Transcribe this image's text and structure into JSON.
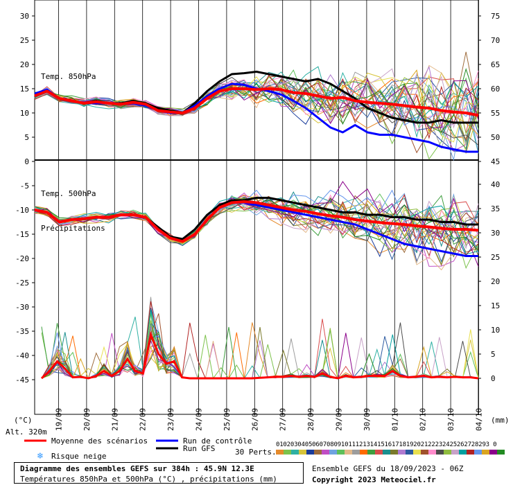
{
  "chart_data": {
    "type": "line",
    "title": "Diagramme des ensembles GEFS sur 384h : 45.9N 12.3E",
    "subtitle": "Températures 850hPa et 500hPa (°C) , précipitations (mm)",
    "x_dates": [
      "19/09",
      "20/09",
      "21/09",
      "22/09",
      "23/09",
      "24/09",
      "25/09",
      "26/09",
      "27/09",
      "28/09",
      "29/09",
      "30/09",
      "01/10",
      "02/10",
      "03/10",
      "04/10"
    ],
    "left_axis": {
      "unit": "(°C)",
      "ticks": [
        30,
        25,
        20,
        15,
        10,
        5,
        0,
        -5,
        -10,
        -15,
        -20,
        -25,
        -30,
        -35,
        -40,
        -45
      ]
    },
    "right_axis": {
      "unit": "(mm)",
      "ticks_top": [
        75,
        70,
        65,
        60,
        55,
        50,
        45
      ],
      "ticks_bottom": [
        40,
        35,
        30,
        25,
        20,
        15,
        10,
        5,
        0
      ]
    },
    "panel_labels": {
      "t850": "Temp. 850hPa",
      "t500": "Temp. 500hPa",
      "precip": "Précipitations"
    },
    "altitude": "Alt. 320m",
    "t850": {
      "mean": [
        13.5,
        14.5,
        13,
        12.5,
        12,
        12.3,
        12,
        11.8,
        12.2,
        11.8,
        10.5,
        10.2,
        10,
        11,
        13,
        14.5,
        15,
        15,
        14.8,
        15,
        14.8,
        14.2,
        14,
        13.5,
        13,
        13.2,
        12.5,
        12.2,
        12,
        11.8,
        11.5,
        11.2,
        11,
        10.5,
        10.2,
        10,
        9.5
      ],
      "control": [
        14,
        14.8,
        13,
        12.5,
        12,
        12,
        12,
        11.8,
        12,
        11.5,
        10.5,
        10,
        10,
        11.5,
        13.5,
        15,
        16,
        15.8,
        15,
        14.5,
        13.8,
        12.5,
        11,
        9,
        7,
        6,
        7.5,
        6,
        5.5,
        5.5,
        5,
        4.5,
        4,
        3,
        2.5,
        2,
        2
      ],
      "gfs": [
        13.5,
        14.5,
        13,
        12.5,
        12,
        12.5,
        12,
        12,
        12.5,
        12,
        11,
        10.5,
        10,
        12,
        14.5,
        16.5,
        18,
        18.2,
        18.5,
        18,
        17.5,
        17,
        16.5,
        17,
        16,
        14.5,
        13,
        11,
        10,
        9,
        8.5,
        8,
        8,
        8.5,
        8,
        8,
        8
      ]
    },
    "t500": {
      "mean": [
        -10,
        -10.5,
        -12.5,
        -12,
        -11.8,
        -11.5,
        -11.5,
        -11,
        -11,
        -11.5,
        -14,
        -15.8,
        -16.5,
        -15,
        -12,
        -9.5,
        -8.5,
        -8.3,
        -8.5,
        -9,
        -9.5,
        -10,
        -10.3,
        -10.8,
        -11.2,
        -11.5,
        -12,
        -12.3,
        -12.6,
        -12.8,
        -13,
        -13.3,
        -13.5,
        -13.8,
        -14,
        -14,
        -14.2
      ],
      "control": [
        -10,
        -10.5,
        -12.5,
        -12,
        -11.8,
        -11.5,
        -11.5,
        -11,
        -11,
        -11.5,
        -14,
        -15.8,
        -16.5,
        -15,
        -12,
        -9.5,
        -8.5,
        -8.5,
        -9,
        -9.5,
        -10,
        -10.5,
        -11,
        -11.5,
        -12,
        -12.5,
        -13,
        -14,
        -15,
        -16,
        -17,
        -17.5,
        -18,
        -18.5,
        -19,
        -19.5,
        -19.5
      ],
      "gfs": [
        -10,
        -10.5,
        -12.5,
        -12,
        -11.8,
        -11.5,
        -11.5,
        -11,
        -11,
        -11.5,
        -13.5,
        -15.5,
        -16,
        -14,
        -11,
        -9,
        -8,
        -8,
        -7.5,
        -7.5,
        -8,
        -8.5,
        -9,
        -9.5,
        -10,
        -10.5,
        -10.5,
        -11,
        -11,
        -11.5,
        -11.5,
        -12,
        -12,
        -12.5,
        -12.5,
        -13,
        -13
      ]
    },
    "precip_mm": {
      "mean": [
        0,
        1.5,
        3.5,
        2,
        0.2,
        0.3,
        0,
        0.5,
        1.5,
        0.5,
        1.5,
        4,
        1.5,
        1,
        9,
        5,
        3,
        3.5,
        0.2,
        0,
        0,
        0,
        0,
        0,
        0,
        0,
        0,
        0,
        0.1,
        0.2,
        0.3,
        0.3,
        0.5,
        0.3,
        0.5,
        0.3,
        1,
        0.3,
        0,
        0.5,
        0.2,
        0.3,
        0.5,
        0.5,
        0.5,
        1.5,
        0.5,
        0.2,
        0.3,
        0.5,
        0.2,
        0.3,
        0.2,
        0.3,
        0.2,
        0.2,
        0
      ]
    }
  },
  "legend": {
    "mean_label": "Moyenne des scénarios",
    "control_label": "Run de contrôle",
    "gfs_label": "Run GFS",
    "snow_label": "Risque neige",
    "perts_label": "30 Perts.",
    "perts_numbers": "01020304050607080910111213141516171819202122232425262728293 0",
    "colors": {
      "mean": "#ff0000",
      "control": "#0000ff",
      "gfs": "#000000",
      "snow": "#3399ff"
    },
    "pert_colors": [
      "#e58a2b",
      "#7cc24b",
      "#2eb0a3",
      "#d7c43a",
      "#1a3c9c",
      "#9e6b3a",
      "#c04ec4",
      "#6fa3e0",
      "#5ec05a",
      "#e3b98a",
      "#9d9d9d",
      "#ff6b00",
      "#3f9f3f",
      "#d94d4d",
      "#1a8f8f",
      "#7a7a2b",
      "#b07ad0",
      "#2c5aa0",
      "#e8e050",
      "#a0522d",
      "#ff8ccc",
      "#4c4c4c",
      "#8fbc3f",
      "#c8a2c8",
      "#00a0a0",
      "#b22222",
      "#6495ed",
      "#daa520",
      "#8b008b",
      "#228b22"
    ]
  },
  "footer": {
    "title": "Diagramme des ensembles GEFS sur 384h : 45.9N 12.3E",
    "subtitle": "Températures 850hPa et 500hPa (°C) , précipitations (mm)",
    "run_info": "Ensemble GEFS du 18/09/2023 - 06Z",
    "copyright": "Copyright 2023 Meteociel.fr"
  }
}
